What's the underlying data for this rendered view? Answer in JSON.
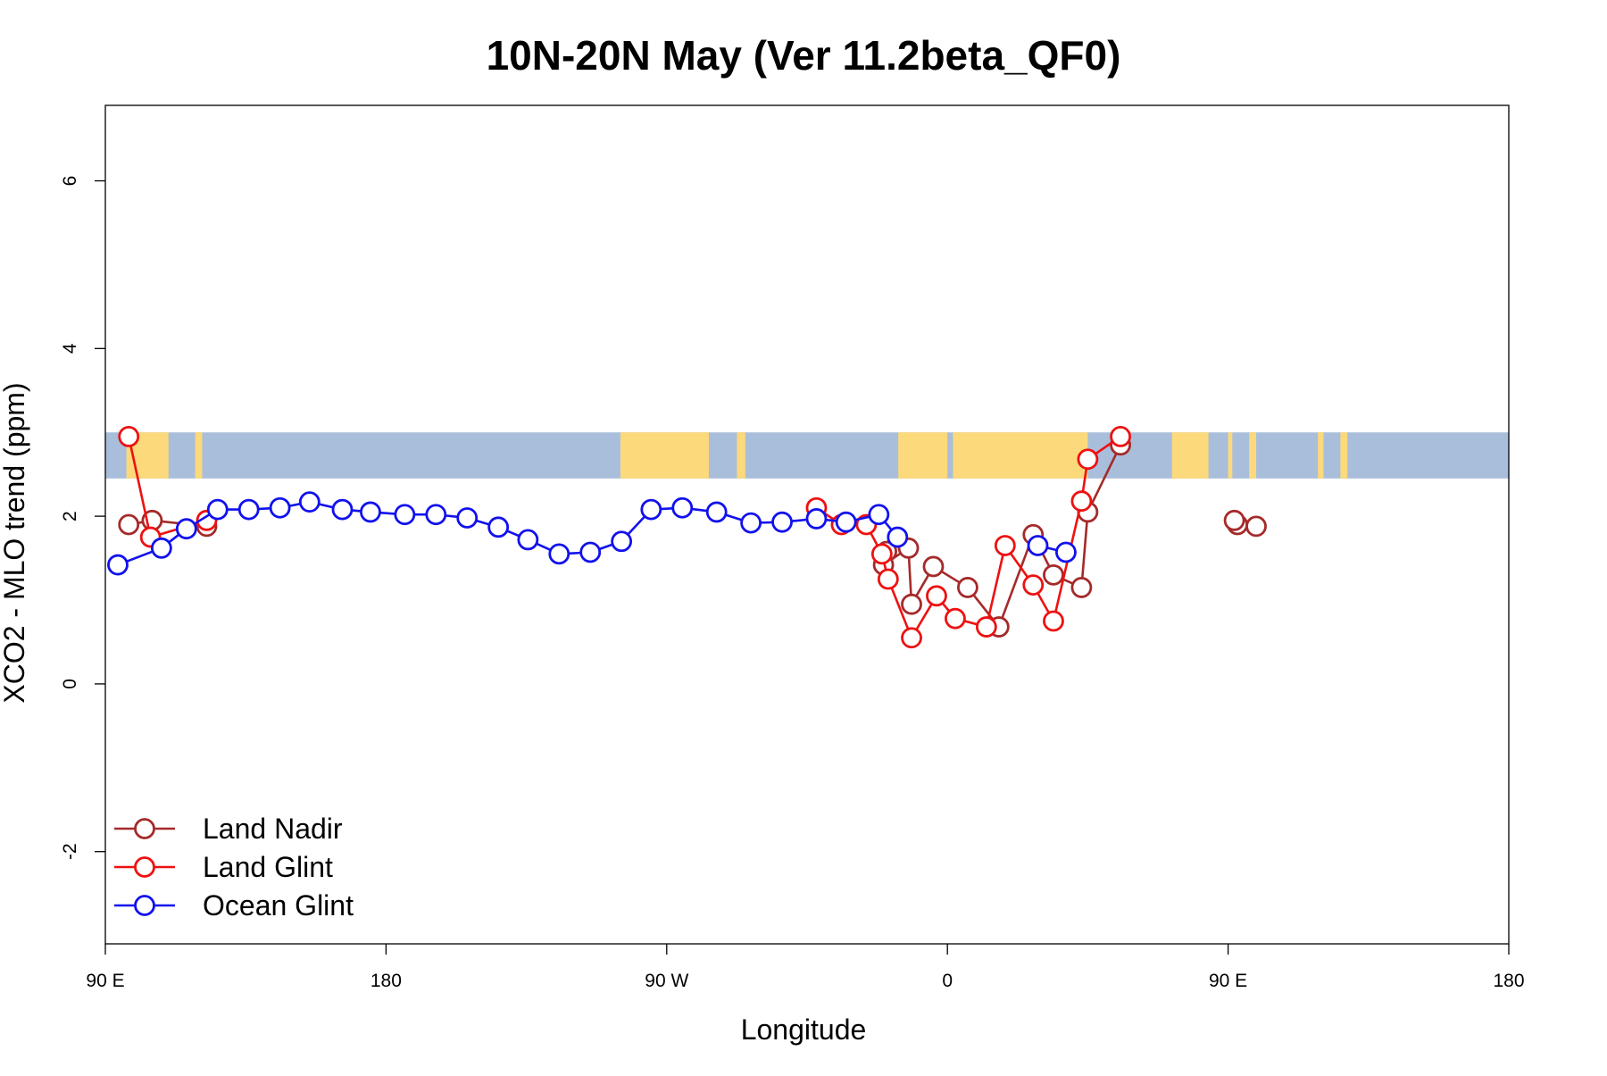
{
  "chart_data": {
    "type": "line",
    "title": "10N-20N May (Ver 11.2beta_QF0)",
    "xlabel": "Longitude",
    "ylabel": "XCO2 - MLO trend (ppm)",
    "xlim": [
      90,
      450
    ],
    "ylim": [
      -3.1,
      6.9
    ],
    "x_ticks": [
      {
        "value": 90,
        "label": "90 E"
      },
      {
        "value": 180,
        "label": "180"
      },
      {
        "value": 270,
        "label": "90 W"
      },
      {
        "value": 360,
        "label": "0"
      },
      {
        "value": 450,
        "label": "90 E"
      },
      {
        "value": 540,
        "label": "180"
      }
    ],
    "y_ticks": [
      {
        "value": -2,
        "label": "-2"
      },
      {
        "value": 0,
        "label": "0"
      },
      {
        "value": 2,
        "label": "2"
      },
      {
        "value": 4,
        "label": "4"
      },
      {
        "value": 6,
        "label": "6"
      }
    ],
    "map_band": {
      "ymin": 2.45,
      "ymax": 3.0,
      "ocean_color": "#a9bedb",
      "land_color": "#fcd97a"
    },
    "grid": false,
    "legend_position": "bottom-left",
    "series": [
      {
        "name": "Land Nadir",
        "color": "#a52a2a",
        "x": [
          97.5,
          105,
          122.5,
          340.5,
          339.5,
          347.5,
          348.5,
          355.5,
          366.5,
          376.5,
          387.5,
          394,
          403,
          405,
          415.5,
          453,
          452,
          459,
          465.5
        ],
        "y": [
          1.9,
          1.95,
          1.88,
          1.58,
          1.42,
          1.62,
          0.95,
          1.4,
          1.15,
          0.68,
          1.78,
          1.3,
          1.15,
          2.05,
          2.85,
          1.9,
          1.95,
          1.88,
          null
        ]
      },
      {
        "name": "Land Glint",
        "color": "#ee1111",
        "x": [
          97.5,
          104.5,
          122.5,
          318,
          326,
          334,
          339,
          341,
          348.5,
          356.5,
          362.5,
          372.5,
          378.5,
          387.5,
          394,
          403,
          405,
          415.5
        ],
        "y": [
          2.95,
          1.75,
          1.95,
          2.1,
          1.9,
          1.9,
          1.55,
          1.25,
          0.55,
          1.05,
          0.78,
          0.68,
          1.65,
          1.18,
          0.75,
          2.18,
          2.68,
          2.95
        ]
      },
      {
        "name": "Ocean Glint",
        "color": "#1111ee",
        "x": [
          94,
          108,
          116,
          126,
          136,
          146,
          155.5,
          166,
          175,
          186,
          196,
          206,
          216,
          225.5,
          235.5,
          245.5,
          255.5,
          265,
          275,
          286,
          297,
          307,
          318,
          327.5,
          338,
          344,
          389,
          398
        ],
        "y": [
          1.42,
          1.62,
          1.85,
          2.08,
          2.08,
          2.1,
          2.17,
          2.08,
          2.05,
          2.02,
          2.02,
          1.98,
          1.87,
          1.72,
          1.55,
          1.57,
          1.7,
          2.08,
          2.1,
          2.05,
          1.92,
          1.93,
          1.97,
          1.93,
          2.02,
          1.75,
          1.65,
          1.57
        ]
      }
    ]
  }
}
